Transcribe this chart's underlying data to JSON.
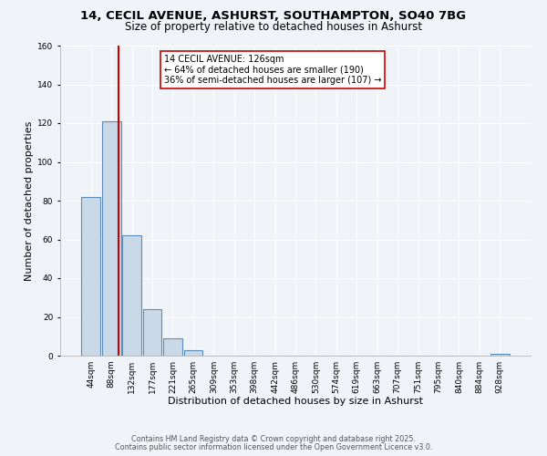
{
  "title_line1": "14, CECIL AVENUE, ASHURST, SOUTHAMPTON, SO40 7BG",
  "title_line2": "Size of property relative to detached houses in Ashurst",
  "xlabel": "Distribution of detached houses by size in Ashurst",
  "ylabel": "Number of detached properties",
  "bin_labels": [
    "44sqm",
    "88sqm",
    "132sqm",
    "177sqm",
    "221sqm",
    "265sqm",
    "309sqm",
    "353sqm",
    "398sqm",
    "442sqm",
    "486sqm",
    "530sqm",
    "574sqm",
    "619sqm",
    "663sqm",
    "707sqm",
    "751sqm",
    "795sqm",
    "840sqm",
    "884sqm",
    "928sqm"
  ],
  "bar_values": [
    82,
    121,
    62,
    24,
    9,
    3,
    0,
    0,
    0,
    0,
    0,
    0,
    0,
    0,
    0,
    0,
    0,
    0,
    0,
    0,
    1
  ],
  "bar_color": "#c9d9e8",
  "bar_edgecolor": "#5b8db8",
  "bar_linewidth": 0.8,
  "vline_color": "#cc0000",
  "vline_linewidth": 1.5,
  "ylim": [
    0,
    160
  ],
  "yticks": [
    0,
    20,
    40,
    60,
    80,
    100,
    120,
    140,
    160
  ],
  "annotation_title": "14 CECIL AVENUE: 126sqm",
  "annotation_line1": "← 64% of detached houses are smaller (190)",
  "annotation_line2": "36% of semi-detached houses are larger (107) →",
  "bg_color": "#f0f4f8",
  "grid_color": "#ffffff",
  "footnote1": "Contains HM Land Registry data © Crown copyright and database right 2025.",
  "footnote2": "Contains public sector information licensed under the Open Government Licence v3.0.",
  "title_fontsize": 9.5,
  "subtitle_fontsize": 8.5,
  "xlabel_fontsize": 8,
  "ylabel_fontsize": 8,
  "tick_fontsize": 6.5,
  "annotation_fontsize": 7,
  "footnote_fontsize": 5.8
}
